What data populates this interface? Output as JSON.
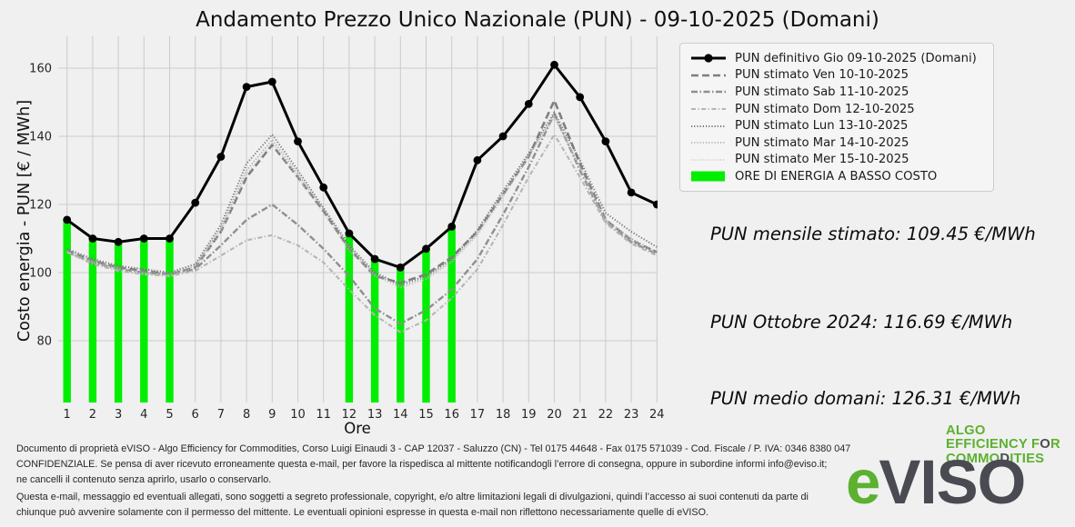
{
  "title": "Andamento Prezzo Unico Nazionale (PUN) - 09-10-2025 (Domani)",
  "colors": {
    "background": "#f0f0f0",
    "grid": "#cbcbcb",
    "tick_text": "#262626",
    "bar_green": "#00ee00",
    "box_green": "#00ee00",
    "logo_green": "#5cb130",
    "logo_dark": "#4a4a52"
  },
  "chart_data": {
    "type": "line",
    "x": [
      1,
      2,
      3,
      4,
      5,
      6,
      7,
      8,
      9,
      10,
      11,
      12,
      13,
      14,
      15,
      16,
      17,
      18,
      19,
      20,
      21,
      22,
      23,
      24
    ],
    "xlabel": "Ore",
    "ylabel": "Costo energia - PUN [€ / MWh]",
    "xticks": [
      1,
      2,
      3,
      4,
      5,
      6,
      7,
      8,
      9,
      10,
      11,
      12,
      13,
      14,
      15,
      16,
      17,
      18,
      19,
      20,
      21,
      22,
      23,
      24
    ],
    "yticks": [
      80,
      100,
      120,
      140,
      160
    ],
    "ylim": [
      62,
      169
    ],
    "grid": true,
    "legend_position": "outside upper right",
    "series": [
      {
        "name": "PUN definitivo Gio 09-10-2025 (Domani)",
        "color": "#000000",
        "dash": "",
        "width": 3,
        "marker": true,
        "values": [
          115.5,
          110,
          109,
          110,
          110,
          120.5,
          134,
          154.5,
          156,
          138.5,
          125,
          111.5,
          104,
          101.5,
          107,
          113.5,
          133,
          140,
          149.5,
          161,
          151.5,
          138.5,
          123.5,
          120
        ]
      },
      {
        "name": "PUN stimato Ven 10-10-2025",
        "color": "#7f7f7f",
        "dash": "8,4",
        "width": 2.6,
        "marker": false,
        "values": [
          106.5,
          103.5,
          101.5,
          100.5,
          99.5,
          101.5,
          112,
          128,
          137.5,
          128,
          118,
          107,
          99,
          97,
          99.5,
          104.5,
          112,
          123,
          134,
          150.5,
          132,
          115.5,
          109.5,
          106
        ]
      },
      {
        "name": "PUN stimato Sab 11-10-2025",
        "color": "#8f8f8f",
        "dash": "7,2.5,1.5,2.5",
        "width": 2.4,
        "marker": false,
        "values": [
          106,
          103,
          101,
          100,
          99.5,
          101,
          108,
          115.5,
          120,
          114,
          107,
          99,
          89.5,
          85,
          89,
          95,
          104,
          117,
          131,
          146.5,
          130,
          115,
          109,
          105.5
        ]
      },
      {
        "name": "PUN stimato Dom 12-10-2025",
        "color": "#b5b5b5",
        "dash": "5,2.5,1.2,2.5",
        "width": 2.1,
        "marker": false,
        "values": [
          106,
          102.5,
          100.5,
          99.5,
          99,
          100.5,
          105,
          109.5,
          111,
          108,
          103,
          95,
          87.5,
          82.5,
          86,
          92.5,
          101,
          114,
          128,
          140.5,
          128,
          114.5,
          108.5,
          105
        ]
      },
      {
        "name": "PUN stimato Lun 13-10-2025",
        "color": "#787878",
        "dash": "1.2,2",
        "width": 2,
        "marker": false,
        "values": [
          107,
          104,
          102,
          101,
          100,
          102.5,
          114,
          132,
          140.5,
          130,
          119,
          108,
          100,
          96.5,
          99,
          104,
          112.5,
          124,
          135,
          147,
          133,
          117.5,
          112,
          107.5
        ]
      },
      {
        "name": "PUN stimato Mar 14-10-2025",
        "color": "#a5a5a5",
        "dash": "1.2,2",
        "width": 1.6,
        "marker": false,
        "values": [
          106.5,
          103.5,
          101.5,
          100,
          99.5,
          102,
          113,
          130,
          139,
          129,
          118.5,
          107.5,
          99.5,
          96,
          98.5,
          103.5,
          111.5,
          123,
          134.5,
          146,
          131,
          115.5,
          110,
          106
        ]
      },
      {
        "name": "PUN stimato Mer 15-10-2025",
        "color": "#c2c2c2",
        "dash": "1.2,2",
        "width": 1.3,
        "marker": false,
        "values": [
          106,
          103,
          101,
          99.5,
          99,
          101.5,
          112,
          129,
          138,
          128,
          117.5,
          106.5,
          99,
          95.5,
          98,
          103,
          111,
          122,
          134,
          145.5,
          130.5,
          115,
          109.5,
          105.5
        ]
      }
    ],
    "low_cost_hours": [
      1,
      2,
      3,
      4,
      5,
      12,
      13,
      14,
      15,
      16
    ],
    "low_cost_label": "ORE DI ENERGIA A BASSO COSTO"
  },
  "info_boxes": [
    {
      "text": "PUN mensile stimato: 109.45 €/MWh"
    },
    {
      "text": "PUN Ottobre 2024: 116.69 €/MWh"
    },
    {
      "text": "PUN medio domani: 126.31 €/MWh"
    }
  ],
  "footer": {
    "lines": [
      "Documento di proprietà eVISO - Algo Efficiency for Commodities, Corso Luigi Einaudi 3 - CAP 12037 - Saluzzo (CN) - Tel 0175 44648 - Fax 0175 571039 - Cod. Fiscale / P. IVA: 0346 8380 047",
      "CONFIDENZIALE. Se pensa di aver ricevuto erroneamente questa e-mail, per favore la rispedisca al mittente notificandogli l’errore di consegna, oppure in subordine informi info@eviso.it;",
      "ne cancelli il contenuto senza aprirlo, usarlo o conservarlo.",
      "Questa e-mail, messaggio ed eventuali allegati, sono soggetti a segreto professionale, copyright, e/o altre limitazioni legali di divulgazioni, quindi l’accesso ai suoi contenuti da parte di",
      "chiunque può avvenire solamente con il permesso del mittente. Le eventuali opinioni espresse in questa e-mail non riflettono necessariamente quelle di eVISO."
    ]
  },
  "logo": {
    "wordmark_e": "e",
    "wordmark_rest": "VISO",
    "tagline_lines": [
      [
        {
          "t": "ALGO",
          "c": "g"
        }
      ],
      [
        {
          "t": "EFFICIENCY F",
          "c": "g"
        },
        {
          "t": "O",
          "c": "d"
        },
        {
          "t": "R",
          "c": "g"
        }
      ],
      [
        {
          "t": "COMMO",
          "c": "g"
        },
        {
          "t": "D",
          "c": "d"
        },
        {
          "t": "ITIES",
          "c": "g"
        }
      ]
    ]
  }
}
